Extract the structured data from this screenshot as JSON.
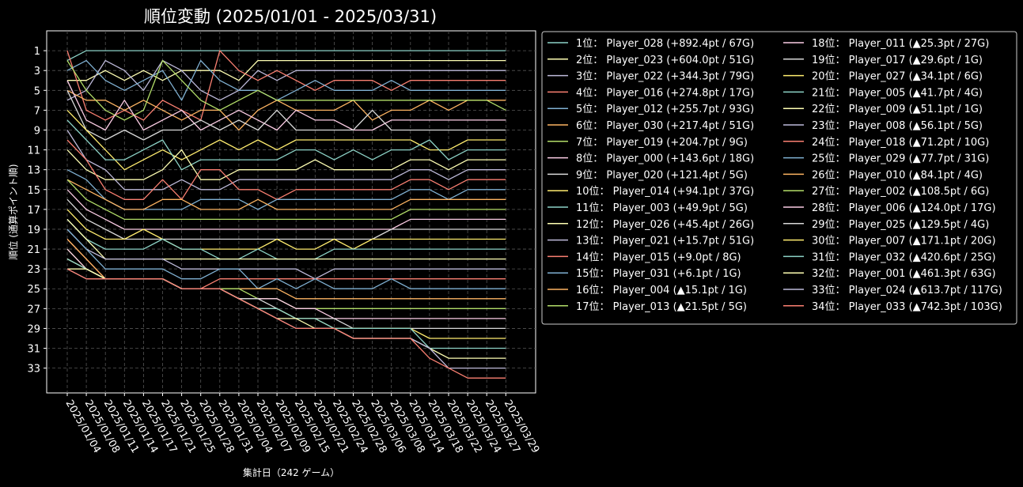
{
  "chart_data": {
    "type": "line",
    "title": "順位変動 (2025/01/01 - 2025/03/31)",
    "xlabel": "集計日（242 ゲーム）",
    "ylabel": "順位 (通算ポイント順)",
    "y_inverted": true,
    "ylim": [
      35.5,
      -1
    ],
    "yticks": [
      1,
      3,
      5,
      7,
      9,
      11,
      13,
      15,
      17,
      19,
      21,
      23,
      25,
      27,
      29,
      31,
      33
    ],
    "grid": true,
    "legend_position": "right-outside",
    "x_tick_labels": [
      "2025/01/04",
      "2025/01/08",
      "2025/01/11",
      "2025/01/14",
      "2025/01/17",
      "2025/01/21",
      "2025/01/25",
      "2025/01/28",
      "2025/01/31",
      "2025/02/04",
      "2025/02/07",
      "2025/02/09",
      "2025/02/15",
      "2025/02/21",
      "2025/02/24",
      "2025/02/28",
      "2025/03/06",
      "2025/03/08",
      "2025/03/14",
      "2025/03/18",
      "2025/03/22",
      "2025/03/24",
      "2025/03/27",
      "2025/03/29"
    ],
    "series": [
      {
        "label": "1位： Player_028 (+892.4pt / 67G)",
        "color": "#8dd3c7",
        "ranks": [
          2,
          1,
          1,
          1,
          1,
          1,
          1,
          1,
          1,
          1,
          1,
          1,
          1,
          1,
          1,
          1,
          1,
          1,
          1,
          1,
          1,
          1,
          1,
          1
        ]
      },
      {
        "label": "2位： Player_023 (+604.0pt / 51G)",
        "color": "#ffffb3",
        "ranks": [
          4,
          4,
          3,
          4,
          3,
          4,
          3,
          3,
          3,
          4,
          2,
          2,
          2,
          2,
          2,
          2,
          2,
          2,
          2,
          2,
          2,
          2,
          2,
          2
        ]
      },
      {
        "label": "3位： Player_022 (+344.3pt / 79G)",
        "color": "#bebada",
        "ranks": [
          6,
          5,
          2,
          3,
          5,
          2,
          3,
          5,
          6,
          5,
          3,
          4,
          3,
          3,
          3,
          3,
          3,
          3,
          3,
          3,
          3,
          3,
          3,
          3
        ]
      },
      {
        "label": "4位： Player_016 (+274.8pt / 17G)",
        "color": "#fb8072",
        "ranks": [
          1,
          7,
          8,
          7,
          8,
          6,
          7,
          8,
          1,
          3,
          4,
          3,
          4,
          5,
          4,
          4,
          4,
          5,
          4,
          4,
          4,
          4,
          4,
          4
        ]
      },
      {
        "label": "5位： Player_012 (+255.7pt / 93G)",
        "color": "#80b1d3",
        "ranks": [
          3,
          2,
          4,
          5,
          4,
          3,
          6,
          2,
          4,
          5,
          5,
          6,
          5,
          4,
          5,
          5,
          5,
          4,
          5,
          5,
          5,
          5,
          5,
          5
        ]
      },
      {
        "label": "6位： Player_030 (+217.4pt / 51G)",
        "color": "#fdb462",
        "ranks": [
          5,
          6,
          6,
          7,
          6,
          7,
          8,
          7,
          7,
          9,
          7,
          6,
          7,
          7,
          7,
          6,
          8,
          7,
          7,
          6,
          7,
          6,
          6,
          6
        ]
      },
      {
        "label": "7位： Player_019 (+204.7pt / 9G)",
        "color": "#b3de69",
        "ranks": [
          2,
          5,
          7,
          8,
          7,
          2,
          4,
          6,
          7,
          6,
          5,
          6,
          6,
          6,
          6,
          6,
          6,
          6,
          6,
          6,
          6,
          6,
          6,
          7
        ]
      },
      {
        "label": "8位： Player_000 (+143.6pt / 18G)",
        "color": "#fccde5",
        "ranks": [
          4,
          8,
          9,
          6,
          9,
          8,
          7,
          9,
          8,
          7,
          8,
          9,
          7,
          8,
          8,
          9,
          9,
          8,
          8,
          8,
          8,
          8,
          8,
          8
        ]
      },
      {
        "label": "9位： Player_020 (+121.4pt / 5G)",
        "color": "#d9d9d9",
        "ranks": [
          5,
          9,
          10,
          9,
          10,
          9,
          9,
          8,
          9,
          8,
          9,
          7,
          9,
          9,
          9,
          9,
          7,
          9,
          9,
          9,
          9,
          9,
          9,
          9
        ]
      },
      {
        "label": "10位： Player_014 (+94.1pt / 37G)",
        "color": "#ffed6f",
        "ranks": [
          7,
          9,
          11,
          13,
          12,
          11,
          12,
          11,
          10,
          11,
          10,
          11,
          10,
          10,
          10,
          10,
          10,
          10,
          10,
          11,
          11,
          10,
          10,
          10
        ]
      },
      {
        "label": "11位： Player_003 (+49.9pt / 5G)",
        "color": "#8dd3c7",
        "ranks": [
          8,
          10,
          12,
          12,
          11,
          10,
          13,
          12,
          12,
          12,
          12,
          12,
          11,
          11,
          12,
          11,
          12,
          11,
          11,
          10,
          12,
          11,
          11,
          11
        ]
      },
      {
        "label": "12位： Player_026 (+45.4pt / 26G)",
        "color": "#ffffb3",
        "ranks": [
          11,
          13,
          14,
          14,
          14,
          13,
          11,
          14,
          14,
          13,
          13,
          13,
          13,
          12,
          13,
          13,
          13,
          13,
          12,
          12,
          13,
          12,
          12,
          12
        ]
      },
      {
        "label": "13位： Player_021 (+15.7pt / 51G)",
        "color": "#bebada",
        "ranks": [
          9,
          12,
          13,
          15,
          15,
          15,
          14,
          15,
          15,
          14,
          14,
          14,
          14,
          14,
          14,
          14,
          14,
          14,
          13,
          13,
          14,
          13,
          13,
          13
        ]
      },
      {
        "label": "14位： Player_015 (+9.0pt / 8G)",
        "color": "#fb8072",
        "ranks": [
          10,
          12,
          15,
          16,
          16,
          14,
          16,
          13,
          13,
          15,
          15,
          16,
          15,
          15,
          15,
          15,
          15,
          15,
          14,
          14,
          15,
          14,
          14,
          14
        ]
      },
      {
        "label": "15位： Player_031 (+6.1pt / 1G)",
        "color": "#80b1d3",
        "ranks": [
          13,
          14,
          16,
          17,
          17,
          17,
          17,
          16,
          16,
          16,
          17,
          16,
          16,
          16,
          16,
          16,
          16,
          16,
          15,
          15,
          16,
          15,
          15,
          15
        ]
      },
      {
        "label": "16位： Player_004 (▲15.1pt / 1G)",
        "color": "#fdb462",
        "ranks": [
          14,
          15,
          16,
          17,
          17,
          16,
          16,
          17,
          17,
          17,
          16,
          17,
          17,
          17,
          17,
          17,
          17,
          17,
          16,
          16,
          16,
          16,
          16,
          16
        ]
      },
      {
        "label": "17位： Player_013 (▲21.5pt / 5G)",
        "color": "#b3de69",
        "ranks": [
          14,
          16,
          17,
          18,
          18,
          18,
          18,
          18,
          18,
          18,
          18,
          18,
          18,
          18,
          18,
          18,
          18,
          18,
          17,
          17,
          17,
          17,
          17,
          17
        ]
      },
      {
        "label": "18位： Player_011 (▲25.3pt / 27G)",
        "color": "#fccde5",
        "ranks": [
          15,
          17,
          18,
          19,
          19,
          19,
          19,
          19,
          19,
          19,
          19,
          19,
          19,
          19,
          19,
          19,
          19,
          19,
          18,
          18,
          18,
          18,
          18,
          18
        ]
      },
      {
        "label": "19位： Player_017 (▲29.6pt / 1G)",
        "color": "#d9d9d9",
        "ranks": [
          16,
          18,
          19,
          20,
          20,
          20,
          20,
          20,
          20,
          20,
          20,
          20,
          20,
          20,
          20,
          20,
          20,
          19,
          19,
          19,
          19,
          19,
          19,
          19
        ]
      },
      {
        "label": "20位： Player_027 (▲34.1pt / 6G)",
        "color": "#ffed6f",
        "ranks": [
          17,
          19,
          20,
          20,
          19,
          20,
          21,
          21,
          21,
          21,
          21,
          20,
          21,
          21,
          20,
          21,
          20,
          20,
          20,
          20,
          20,
          20,
          20,
          20
        ]
      },
      {
        "label": "21位： Player_005 (▲41.7pt / 4G)",
        "color": "#8dd3c7",
        "ranks": [
          18,
          20,
          21,
          21,
          21,
          20,
          21,
          21,
          22,
          22,
          21,
          22,
          22,
          22,
          21,
          21,
          21,
          21,
          21,
          21,
          21,
          21,
          21,
          21
        ]
      },
      {
        "label": "22位： Player_009 (▲51.1pt / 1G)",
        "color": "#ffffb3",
        "ranks": [
          18,
          20,
          22,
          22,
          22,
          22,
          22,
          22,
          22,
          22,
          22,
          22,
          22,
          22,
          22,
          22,
          22,
          22,
          22,
          22,
          22,
          22,
          22,
          22
        ]
      },
      {
        "label": "23位： Player_008 (▲56.1pt / 5G)",
        "color": "#bebada",
        "ranks": [
          19,
          21,
          22,
          22,
          22,
          22,
          23,
          23,
          23,
          23,
          23,
          23,
          23,
          24,
          23,
          23,
          23,
          23,
          23,
          23,
          23,
          23,
          23,
          23
        ]
      },
      {
        "label": "24位： Player_018 (▲71.2pt / 10G)",
        "color": "#fb8072",
        "ranks": [
          20,
          22,
          24,
          24,
          24,
          24,
          25,
          25,
          24,
          24,
          24,
          24,
          24,
          24,
          24,
          24,
          24,
          24,
          24,
          24,
          24,
          24,
          24,
          24
        ]
      },
      {
        "label": "25位： Player_029 (▲77.7pt / 31G)",
        "color": "#80b1d3",
        "ranks": [
          19,
          21,
          23,
          23,
          23,
          23,
          24,
          24,
          23,
          23,
          25,
          24,
          25,
          24,
          25,
          25,
          25,
          24,
          25,
          25,
          25,
          25,
          25,
          25
        ]
      },
      {
        "label": "26位： Player_010 (▲84.1pt / 4G)",
        "color": "#fdb462",
        "ranks": [
          20,
          22,
          24,
          24,
          24,
          24,
          25,
          25,
          25,
          25,
          25,
          25,
          26,
          26,
          26,
          26,
          26,
          26,
          26,
          26,
          26,
          26,
          26,
          26
        ]
      },
      {
        "label": "27位： Player_002 (▲108.5pt / 6G)",
        "color": "#b3de69",
        "ranks": [
          21,
          23,
          24,
          24,
          24,
          24,
          25,
          25,
          25,
          25,
          26,
          26,
          27,
          27,
          27,
          27,
          27,
          27,
          27,
          27,
          27,
          27,
          27,
          27
        ]
      },
      {
        "label": "28位： Player_006 (▲124.0pt / 17G)",
        "color": "#fccde5",
        "ranks": [
          21,
          23,
          24,
          24,
          24,
          24,
          25,
          25,
          25,
          26,
          26,
          26,
          27,
          27,
          28,
          28,
          28,
          28,
          28,
          28,
          28,
          28,
          28,
          28
        ]
      },
      {
        "label": "29位： Player_025 (▲129.5pt / 4G)",
        "color": "#d9d9d9",
        "ranks": [
          22,
          23,
          24,
          24,
          24,
          24,
          25,
          25,
          25,
          26,
          26,
          27,
          28,
          28,
          28,
          29,
          29,
          29,
          29,
          29,
          29,
          29,
          29,
          29
        ]
      },
      {
        "label": "30位： Player_007 (▲171.1pt / 20G)",
        "color": "#ffed6f",
        "ranks": [
          22,
          23,
          24,
          24,
          24,
          24,
          25,
          25,
          25,
          26,
          27,
          27,
          28,
          28,
          29,
          29,
          29,
          29,
          29,
          30,
          30,
          30,
          30,
          30
        ]
      },
      {
        "label": "31位： Player_032 (▲420.6pt / 25G)",
        "color": "#8dd3c7",
        "ranks": [
          22,
          23,
          24,
          24,
          24,
          24,
          25,
          25,
          25,
          26,
          27,
          27,
          28,
          28,
          29,
          29,
          29,
          29,
          29,
          31,
          31,
          31,
          31,
          31
        ]
      },
      {
        "label": "32位： Player_001 (▲461.3pt / 63G)",
        "color": "#ffffb3",
        "ranks": [
          23,
          23,
          24,
          24,
          24,
          24,
          25,
          25,
          25,
          26,
          27,
          28,
          28,
          29,
          29,
          30,
          30,
          30,
          30,
          31,
          32,
          32,
          32,
          32
        ]
      },
      {
        "label": "33位： Player_024 (▲613.7pt / 117G)",
        "color": "#bebada",
        "ranks": [
          23,
          24,
          24,
          24,
          24,
          24,
          25,
          25,
          25,
          26,
          27,
          28,
          29,
          29,
          29,
          30,
          30,
          30,
          30,
          31,
          33,
          33,
          33,
          33
        ]
      },
      {
        "label": "34位： Player_033 (▲742.3pt / 103G)",
        "color": "#fb8072",
        "ranks": [
          23,
          24,
          24,
          24,
          24,
          24,
          25,
          25,
          25,
          26,
          27,
          28,
          29,
          29,
          29,
          30,
          30,
          30,
          30,
          32,
          33,
          34,
          34,
          34
        ]
      }
    ]
  }
}
